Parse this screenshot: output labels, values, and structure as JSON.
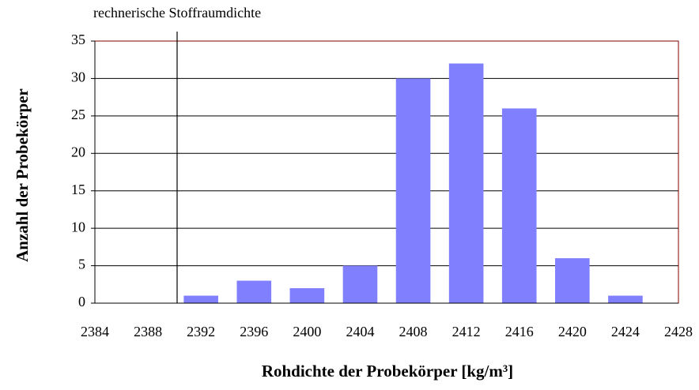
{
  "chart_data": {
    "type": "bar",
    "x": [
      2392,
      2396,
      2400,
      2404,
      2408,
      2412,
      2416,
      2420,
      2424
    ],
    "values": [
      1,
      3,
      2,
      5,
      30,
      32,
      26,
      6,
      1
    ],
    "color": "#8080ff",
    "xlim": [
      2384,
      2428
    ],
    "xticks": [
      2384,
      2388,
      2392,
      2396,
      2400,
      2404,
      2408,
      2412,
      2416,
      2420,
      2424,
      2428
    ],
    "ylim": [
      0,
      35
    ],
    "yticks": [
      0,
      5,
      10,
      15,
      20,
      25,
      30,
      35
    ],
    "grid": true,
    "xlabel": "Rohdichte der Probekörper [kg/m³]",
    "ylabel": "Anzahl der Probekörper",
    "reference_line": {
      "x": 2390.2,
      "label": "rechnerische Stoffraumdichte"
    }
  }
}
